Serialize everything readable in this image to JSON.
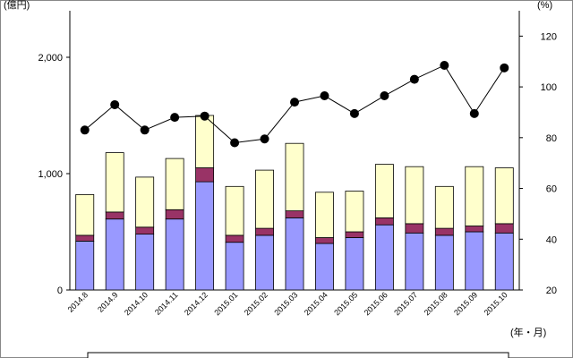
{
  "chart_data": {
    "type": "bar",
    "stacked": true,
    "categories": [
      "2014.8",
      "2014.9",
      "2014.10",
      "2014.11",
      "2014.12",
      "2015.01",
      "2015.02",
      "2015.03",
      "2015.04",
      "2015.05",
      "2015.06",
      "2015.07",
      "2015.08",
      "2015.09",
      "2015.10"
    ],
    "series": [
      {
        "values": [
          420,
          610,
          480,
          610,
          930,
          410,
          470,
          620,
          400,
          450,
          560,
          490,
          470,
          500,
          490
        ],
        "color": "#9999ff",
        "kind": "bar"
      },
      {
        "values": [
          50,
          60,
          60,
          80,
          120,
          60,
          60,
          60,
          50,
          50,
          60,
          80,
          60,
          50,
          80
        ],
        "color": "#993366",
        "kind": "bar"
      },
      {
        "values": [
          350,
          510,
          430,
          440,
          450,
          420,
          500,
          580,
          390,
          350,
          460,
          490,
          360,
          510,
          480
        ],
        "color": "#ffffcc",
        "kind": "bar"
      },
      {
        "values": [
          83,
          93,
          83,
          88,
          88.5,
          78,
          79.5,
          94,
          96.5,
          89.5,
          96.5,
          103,
          108.5,
          89.5,
          107.5
        ],
        "color": "#000000",
        "kind": "line",
        "axis": "right"
      }
    ],
    "y_left": {
      "label": "(億円)",
      "ticks": [
        "0",
        "1,000",
        "2,000"
      ],
      "ylim": [
        0,
        2400
      ]
    },
    "y_right": {
      "label": "(%)",
      "ticks": [
        "20",
        "40",
        "60",
        "80",
        "100",
        "120"
      ],
      "ylim": [
        20,
        130
      ]
    },
    "x_unit": "(年・月)",
    "grid": false,
    "legend_visible_text": ""
  }
}
